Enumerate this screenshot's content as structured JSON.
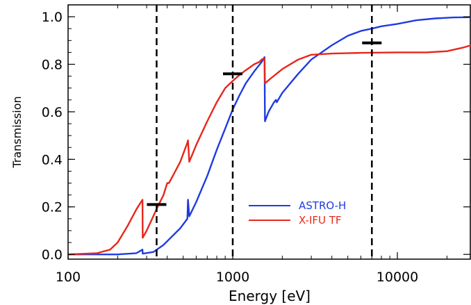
{
  "chart_data": {
    "type": "line",
    "title": "",
    "xlabel": "Energy [eV]",
    "ylabel": "Transmission",
    "xscale": "log",
    "xlim": [
      100,
      28000
    ],
    "ylim": [
      -0.02,
      1.05
    ],
    "grid": false,
    "legend_position": "lower-right",
    "x_ticks": [
      {
        "value": 100,
        "label": "100"
      },
      {
        "value": 1000,
        "label": "1000"
      },
      {
        "value": 10000,
        "label": "10000"
      }
    ],
    "y_ticks": [
      {
        "value": 0.0,
        "label": "0.0"
      },
      {
        "value": 0.2,
        "label": "0.2"
      },
      {
        "value": 0.4,
        "label": "0.4"
      },
      {
        "value": 0.6,
        "label": "0.6"
      },
      {
        "value": 0.8,
        "label": "0.8"
      },
      {
        "value": 1.0,
        "label": "1.0"
      }
    ],
    "series": [
      {
        "name": "ASTRO-H",
        "color": "#1f3be0",
        "points": [
          [
            100,
            0.0
          ],
          [
            200,
            0.0
          ],
          [
            260,
            0.005
          ],
          [
            283,
            0.02
          ],
          [
            284,
            0.003
          ],
          [
            330,
            0.01
          ],
          [
            380,
            0.04
          ],
          [
            420,
            0.07
          ],
          [
            480,
            0.11
          ],
          [
            530,
            0.15
          ],
          [
            535,
            0.23
          ],
          [
            545,
            0.16
          ],
          [
            600,
            0.22
          ],
          [
            700,
            0.33
          ],
          [
            800,
            0.44
          ],
          [
            900,
            0.53
          ],
          [
            1000,
            0.61
          ],
          [
            1100,
            0.67
          ],
          [
            1200,
            0.72
          ],
          [
            1350,
            0.77
          ],
          [
            1500,
            0.81
          ],
          [
            1560,
            0.83
          ],
          [
            1570,
            0.56
          ],
          [
            1650,
            0.6
          ],
          [
            1780,
            0.64
          ],
          [
            1830,
            0.65
          ],
          [
            1850,
            0.64
          ],
          [
            2000,
            0.68
          ],
          [
            2500,
            0.76
          ],
          [
            3000,
            0.82
          ],
          [
            4000,
            0.88
          ],
          [
            5000,
            0.92
          ],
          [
            6000,
            0.94
          ],
          [
            7000,
            0.95
          ],
          [
            8000,
            0.96
          ],
          [
            10000,
            0.97
          ],
          [
            13000,
            0.985
          ],
          [
            17000,
            0.993
          ],
          [
            22000,
            0.997
          ],
          [
            28000,
            0.998
          ]
        ]
      },
      {
        "name": "X-IFU TF",
        "color": "#e8251b",
        "points": [
          [
            100,
            0.0
          ],
          [
            150,
            0.005
          ],
          [
            180,
            0.02
          ],
          [
            200,
            0.05
          ],
          [
            230,
            0.12
          ],
          [
            260,
            0.19
          ],
          [
            283,
            0.23
          ],
          [
            284,
            0.07
          ],
          [
            300,
            0.1
          ],
          [
            350,
            0.2
          ],
          [
            380,
            0.25
          ],
          [
            400,
            0.3
          ],
          [
            410,
            0.3
          ],
          [
            440,
            0.34
          ],
          [
            480,
            0.39
          ],
          [
            530,
            0.47
          ],
          [
            535,
            0.48
          ],
          [
            545,
            0.39
          ],
          [
            600,
            0.46
          ],
          [
            700,
            0.56
          ],
          [
            800,
            0.64
          ],
          [
            900,
            0.7
          ],
          [
            1000,
            0.73
          ],
          [
            1100,
            0.755
          ],
          [
            1200,
            0.775
          ],
          [
            1350,
            0.8
          ],
          [
            1450,
            0.81
          ],
          [
            1500,
            0.82
          ],
          [
            1550,
            0.825
          ],
          [
            1560,
            0.82
          ],
          [
            1570,
            0.72
          ],
          [
            1700,
            0.74
          ],
          [
            2000,
            0.78
          ],
          [
            2500,
            0.82
          ],
          [
            3000,
            0.84
          ],
          [
            4000,
            0.845
          ],
          [
            6000,
            0.848
          ],
          [
            10000,
            0.85
          ],
          [
            15000,
            0.85
          ],
          [
            20000,
            0.855
          ],
          [
            25000,
            0.87
          ],
          [
            28000,
            0.88
          ]
        ]
      }
    ],
    "vertical_lines": [
      345,
      1000,
      7000
    ],
    "markers": [
      {
        "x": 345,
        "y": 0.21
      },
      {
        "x": 1000,
        "y": 0.76
      },
      {
        "x": 7000,
        "y": 0.89
      }
    ]
  }
}
